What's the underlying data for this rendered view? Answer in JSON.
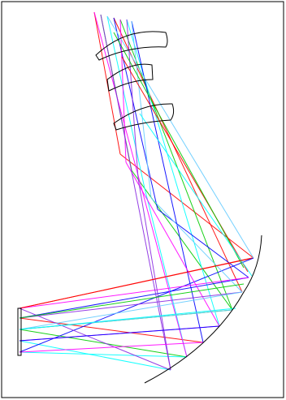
{
  "view": {
    "title": "",
    "background": "#ffffff",
    "border_color": "#000000"
  },
  "colors": {
    "outline": "#000000",
    "rays": [
      "#ff0000",
      "#00cc00",
      "#00ffff",
      "#0000ff",
      "#ff00ff",
      "#8a2be2",
      "#66ccff"
    ]
  }
}
